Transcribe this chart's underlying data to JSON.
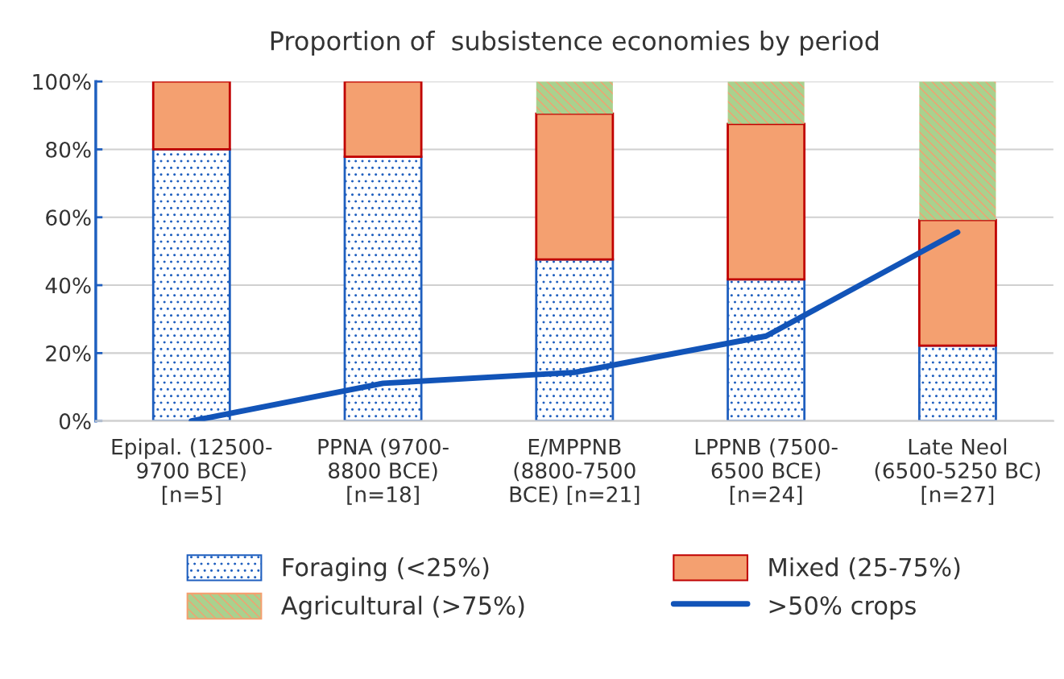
{
  "chart_data": {
    "type": "bar",
    "title": "Proportion of  subsistence economies by period",
    "stacked": true,
    "categories": [
      "Epipal. (12500-\n9700 BCE)\n[n=5]",
      "PPNA (9700-\n8800 BCE)\n[n=18]",
      "E/MPPNB\n(8800-7500\nBCE) [n=21]",
      "LPPNB (7500-\n6500 BCE)\n[n=24]",
      "Late Neol\n(6500-5250 BC)\n[n=27]"
    ],
    "series": [
      {
        "name": "Foraging (<25%)",
        "color": "#1f5fbf",
        "values": [
          80,
          77.8,
          47.6,
          41.7,
          22.2
        ]
      },
      {
        "name": "Mixed (25-75%)",
        "color": "#f4a070",
        "values": [
          20,
          22.2,
          42.9,
          45.8,
          37.0
        ]
      },
      {
        "name": "Agricultural (>75%)",
        "color": "#a9d18e",
        "values": [
          0,
          0,
          9.5,
          12.5,
          40.8
        ]
      },
      {
        "name": ">50% crops",
        "type": "line",
        "color": "#1254b8",
        "values": [
          0,
          11.1,
          14.3,
          25,
          55.6
        ]
      }
    ],
    "ylim": [
      0,
      100
    ],
    "yticks": [
      {
        "value": 0,
        "label": "0%"
      },
      {
        "value": 20,
        "label": "20%"
      },
      {
        "value": 40,
        "label": "40%"
      },
      {
        "value": 60,
        "label": "60%"
      },
      {
        "value": 80,
        "label": "80%"
      },
      {
        "value": 100,
        "label": "100%"
      }
    ],
    "grid": "y",
    "legend": "bottom"
  }
}
